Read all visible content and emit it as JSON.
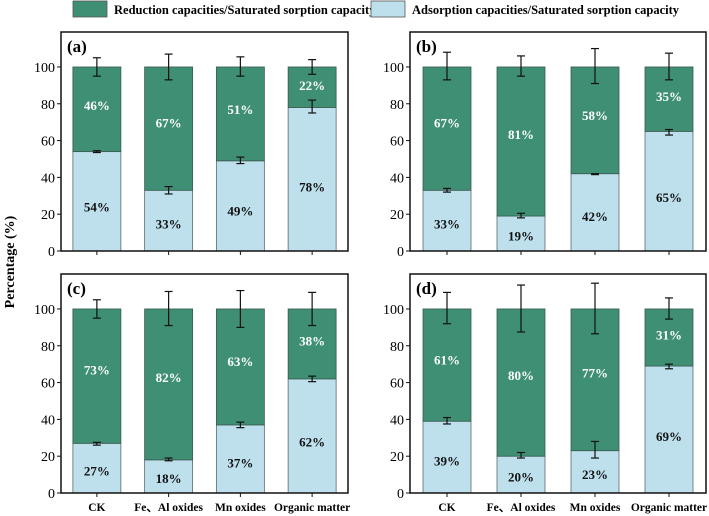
{
  "colors": {
    "reduction": "#3e8f73",
    "adsorption": "#bde0ec",
    "frame": "#111111"
  },
  "legend": {
    "reduction": "Reduction capacities/Saturated sorption capacity",
    "adsorption": "Adsorption capacities/Saturated sorption capacity"
  },
  "ylabel": "Percentage (%)",
  "chart_data": [
    {
      "type": "bar",
      "stacked": true,
      "panel": "(a)",
      "categories": [
        "CK",
        "Fe、Al oxides",
        "Mn oxides",
        "Organic matter"
      ],
      "ylim": [
        0,
        119
      ],
      "yticks": [
        "0",
        "20",
        "40",
        "60",
        "80",
        "100"
      ],
      "series": [
        {
          "name": "Adsorption capacities/Saturated sorption capacity",
          "values": [
            54,
            33,
            49,
            78
          ],
          "labels": [
            "54%",
            "33%",
            "49%",
            "78%"
          ],
          "err": [
            [
              53.5,
              54.5
            ],
            [
              31,
              35
            ],
            [
              47.5,
              51
            ],
            [
              75,
              82
            ]
          ]
        },
        {
          "name": "Reduction capacities/Saturated sorption capacity",
          "values": [
            46,
            67,
            51,
            22
          ],
          "labels": [
            "46%",
            "67%",
            "51%",
            "22%"
          ],
          "err": [
            [
              95,
              105
            ],
            [
              93,
              107
            ],
            [
              95,
              105.5
            ],
            [
              96,
              104
            ]
          ]
        }
      ]
    },
    {
      "type": "bar",
      "stacked": true,
      "panel": "(b)",
      "categories": [
        "CK",
        "Fe、Al oxides",
        "Mn oxides",
        "Organic matter"
      ],
      "ylim": [
        0,
        119
      ],
      "yticks": [
        "0",
        "20",
        "40",
        "60",
        "80",
        "100"
      ],
      "series": [
        {
          "name": "Adsorption capacities/Saturated sorption capacity",
          "values": [
            33,
            19,
            42,
            65
          ],
          "labels": [
            "33%",
            "19%",
            "42%",
            "65%"
          ],
          "err": [
            [
              32,
              34
            ],
            [
              18,
              20.5
            ],
            [
              41.5,
              42
            ],
            [
              63,
              66
            ]
          ]
        },
        {
          "name": "Reduction capacities/Saturated sorption capacity",
          "values": [
            67,
            81,
            58,
            35
          ],
          "labels": [
            "67%",
            "81%",
            "58%",
            "35%"
          ],
          "err": [
            [
              93,
              108
            ],
            [
              95,
              106
            ],
            [
              91,
              110
            ],
            [
              93,
              107.5
            ]
          ]
        }
      ]
    },
    {
      "type": "bar",
      "stacked": true,
      "panel": "(c)",
      "categories": [
        "CK",
        "Fe、Al oxides",
        "Mn oxides",
        "Organic matter"
      ],
      "ylim": [
        0,
        119
      ],
      "yticks": [
        "0",
        "20",
        "40",
        "60",
        "80",
        "100"
      ],
      "series": [
        {
          "name": "Adsorption capacities/Saturated sorption capacity",
          "values": [
            27,
            18,
            37,
            62
          ],
          "labels": [
            "27%",
            "18%",
            "37%",
            "62%"
          ],
          "err": [
            [
              26,
              27.5
            ],
            [
              17.5,
              19
            ],
            [
              35.5,
              38.5
            ],
            [
              60.5,
              63.5
            ]
          ]
        },
        {
          "name": "Reduction capacities/Saturated sorption capacity",
          "values": [
            73,
            82,
            63,
            38
          ],
          "labels": [
            "73%",
            "82%",
            "63%",
            "38%"
          ],
          "err": [
            [
              95,
              105
            ],
            [
              91,
              109.5
            ],
            [
              90,
              110
            ],
            [
              91,
              109
            ]
          ]
        }
      ]
    },
    {
      "type": "bar",
      "stacked": true,
      "panel": "(d)",
      "categories": [
        "CK",
        "Fe、Al oxides",
        "Mn oxides",
        "Organic matter"
      ],
      "ylim": [
        0,
        119
      ],
      "yticks": [
        "0",
        "20",
        "40",
        "60",
        "80",
        "100"
      ],
      "series": [
        {
          "name": "Adsorption capacities/Saturated sorption capacity",
          "values": [
            39,
            20,
            23,
            69
          ],
          "labels": [
            "39%",
            "20%",
            "23%",
            "69%"
          ],
          "err": [
            [
              37.5,
              41
            ],
            [
              19,
              22
            ],
            [
              19,
              28
            ],
            [
              67.5,
              70
            ]
          ]
        },
        {
          "name": "Reduction capacities/Saturated sorption capacity",
          "values": [
            61,
            80,
            77,
            31
          ],
          "labels": [
            "61%",
            "80%",
            "77%",
            "31%"
          ],
          "err": [
            [
              92,
              109
            ],
            [
              87.5,
              113
            ],
            [
              86.5,
              114
            ],
            [
              94.5,
              106
            ]
          ]
        }
      ]
    }
  ]
}
